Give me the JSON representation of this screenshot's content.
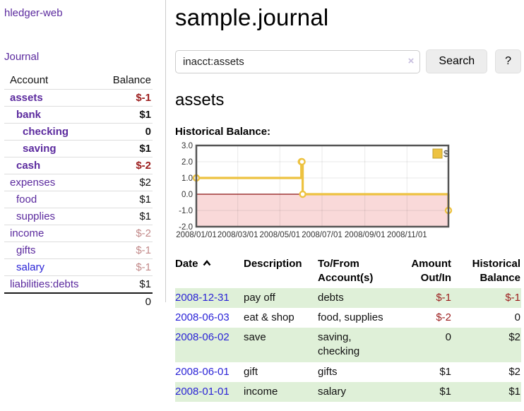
{
  "sidebar": {
    "app_title": "hledger-web",
    "journal_link": "Journal",
    "accounts": {
      "headers": {
        "account": "Account",
        "balance": "Balance"
      },
      "rows": [
        {
          "name": "assets",
          "balance": "$-1",
          "depth": 1,
          "bold": true,
          "link_color": "purple",
          "balance_color": "bal-neg"
        },
        {
          "name": "bank",
          "balance": "$1",
          "depth": 2,
          "bold": true,
          "link_color": "purple",
          "balance_color": "bal-default"
        },
        {
          "name": "checking",
          "balance": "0",
          "depth": 3,
          "bold": true,
          "link_color": "purple",
          "balance_color": "bal-default"
        },
        {
          "name": "saving",
          "balance": "$1",
          "depth": 3,
          "bold": true,
          "link_color": "purple",
          "balance_color": "bal-default"
        },
        {
          "name": "cash",
          "balance": "$-2",
          "depth": 2,
          "bold": true,
          "link_color": "purple",
          "balance_color": "bal-neg"
        },
        {
          "name": "expenses",
          "balance": "$2",
          "depth": 1,
          "bold": false,
          "link_color": "purple",
          "balance_color": "bal-default"
        },
        {
          "name": "food",
          "balance": "$1",
          "depth": 2,
          "bold": false,
          "link_color": "purple",
          "balance_color": "bal-default"
        },
        {
          "name": "supplies",
          "balance": "$1",
          "depth": 2,
          "bold": false,
          "link_color": "purple",
          "balance_color": "bal-default"
        },
        {
          "name": "income",
          "balance": "$-2",
          "depth": 1,
          "bold": false,
          "link_color": "purple",
          "balance_color": "bal-rose"
        },
        {
          "name": "gifts",
          "balance": "$-1",
          "depth": 2,
          "bold": false,
          "link_color": "purple",
          "balance_color": "bal-rose"
        },
        {
          "name": "salary",
          "balance": "$-1",
          "depth": 2,
          "bold": false,
          "link_color": "blue",
          "balance_color": "bal-rose"
        },
        {
          "name": "liabilities:debts",
          "balance": "$1",
          "depth": 1,
          "bold": false,
          "link_color": "purple",
          "balance_color": "bal-default"
        }
      ],
      "total": "0"
    }
  },
  "header": {
    "title": "sample.journal"
  },
  "search": {
    "value": "inacct:assets",
    "clear_icon": "×",
    "button_label": "Search",
    "help_label": "?"
  },
  "account_page": {
    "heading": "assets",
    "chart_section_label": "Historical Balance:"
  },
  "chart_data": {
    "type": "line",
    "step": true,
    "title": "Historical Balance",
    "series": [
      {
        "name": "$",
        "color": "#edc240",
        "points": [
          {
            "date": "2008-01-01",
            "day": 0,
            "value": 1
          },
          {
            "date": "2008-06-01",
            "day": 152,
            "value": 2
          },
          {
            "date": "2008-06-02",
            "day": 153,
            "value": 2
          },
          {
            "date": "2008-06-03",
            "day": 154,
            "value": 0
          },
          {
            "date": "2008-12-31",
            "day": 365,
            "value": -1
          }
        ]
      }
    ],
    "xticks": [
      {
        "day": 0,
        "label": "2008/01/01"
      },
      {
        "day": 60,
        "label": "2008/03/01"
      },
      {
        "day": 121,
        "label": "2008/05/01"
      },
      {
        "day": 182,
        "label": "2008/07/01"
      },
      {
        "day": 244,
        "label": "2008/09/01"
      },
      {
        "day": 305,
        "label": "2008/11/01"
      }
    ],
    "yticks": [
      {
        "value": 3,
        "label": "3.0"
      },
      {
        "value": 2,
        "label": "2.0"
      },
      {
        "value": 1,
        "label": "1.0"
      },
      {
        "value": 0,
        "label": "0.0"
      },
      {
        "value": -1,
        "label": "-1.0"
      },
      {
        "value": -2,
        "label": "-2.0"
      }
    ],
    "ylim": [
      -2,
      3
    ],
    "xlim_days": [
      0,
      365
    ],
    "grid": true,
    "legend": {
      "position": "top-right",
      "label": "$",
      "swatch_color": "#edc240"
    },
    "negative_region_color": "#f9d9d9",
    "zero_line_color": "#8b1010",
    "border_color": "#545454"
  },
  "register": {
    "columns": {
      "date": "Date",
      "description": "Description",
      "accounts": "To/From Account(s)",
      "amount": "Amount Out/In",
      "balance": "Historical Balance"
    },
    "sort": {
      "column": "date",
      "direction": "ascending"
    },
    "rows": [
      {
        "date": "2008-12-31",
        "description": "pay off",
        "accounts": "debts",
        "amount": "$-1",
        "amount_negative": true,
        "balance": "$-1",
        "balance_negative": true,
        "shaded": true
      },
      {
        "date": "2008-06-03",
        "description": "eat & shop",
        "accounts": "food, supplies",
        "amount": "$-2",
        "amount_negative": true,
        "balance": "0",
        "balance_negative": false,
        "shaded": false
      },
      {
        "date": "2008-06-02",
        "description": "save",
        "accounts": "saving, checking",
        "amount": "0",
        "amount_negative": false,
        "balance": "$2",
        "balance_negative": false,
        "shaded": true
      },
      {
        "date": "2008-06-01",
        "description": "gift",
        "accounts": "gifts",
        "amount": "$1",
        "amount_negative": false,
        "balance": "$2",
        "balance_negative": false,
        "shaded": false
      },
      {
        "date": "2008-01-01",
        "description": "income",
        "accounts": "salary",
        "amount": "$1",
        "amount_negative": false,
        "balance": "$1",
        "balance_negative": false,
        "shaded": true
      }
    ]
  }
}
